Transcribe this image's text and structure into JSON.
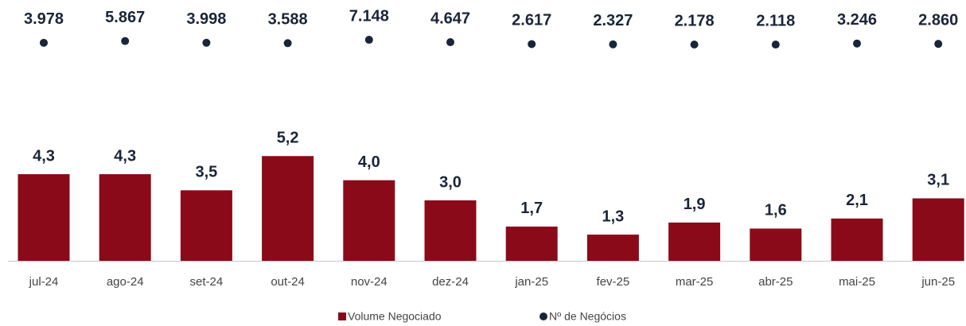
{
  "chart_data": {
    "type": "bar",
    "categories": [
      "jul-24",
      "ago-24",
      "set-24",
      "out-24",
      "nov-24",
      "dez-24",
      "jan-25",
      "fev-25",
      "mar-25",
      "abr-25",
      "mai-25",
      "jun-25"
    ],
    "series": [
      {
        "name": "Volume Negociado",
        "type": "bar",
        "color": "#8b0a1a",
        "values": [
          4.3,
          4.3,
          3.5,
          5.2,
          4.0,
          3.0,
          1.7,
          1.3,
          1.9,
          1.6,
          2.1,
          3.1
        ],
        "value_labels": [
          "4,3",
          "4,3",
          "3,5",
          "5,2",
          "4,0",
          "3,0",
          "1,7",
          "1,3",
          "1,9",
          "1,6",
          "2,1",
          "3,1"
        ]
      },
      {
        "name": "Nº de Negócios",
        "type": "scatter",
        "axis": "y2",
        "color": "#1b2538",
        "values": [
          3978,
          5867,
          3998,
          3588,
          7148,
          4647,
          2617,
          2327,
          2178,
          2118,
          3246,
          2860
        ],
        "value_labels": [
          "3.978",
          "5.867",
          "3.998",
          "3.588",
          "7.148",
          "4.647",
          "2.617",
          "2.327",
          "2.178",
          "2.118",
          "3.246",
          "2.860"
        ]
      }
    ],
    "ylim": [
      0,
      12
    ],
    "y2lim": [
      -226000,
      29000
    ],
    "legend": "bottom"
  }
}
